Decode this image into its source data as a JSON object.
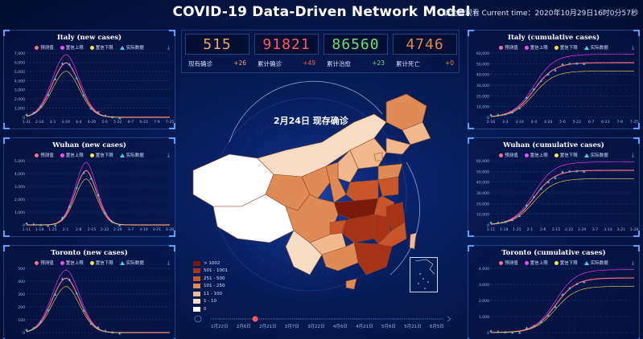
{
  "header": {
    "title": "COVID-19 Data-Driven Network Model",
    "clock": "请全屏观看 Current time：2020年10月29日16时0分57秒"
  },
  "legend_labels": {
    "predicted": "预测值",
    "upper": "置信上限",
    "lower": "置信下限",
    "actual": "实际数据"
  },
  "download_icon": "download-icon",
  "stats": [
    {
      "value": "515",
      "label": "现有确诊",
      "delta": "+26",
      "color": "#f0a860"
    },
    {
      "value": "91821",
      "label": "累计确诊",
      "delta": "+49",
      "color": "#ff5a5a"
    },
    {
      "value": "86560",
      "label": "累计治愈",
      "delta": "+23",
      "color": "#6fe06f"
    },
    {
      "value": "4746",
      "label": "累计死亡",
      "delta": "+0",
      "color": "#e08a4a"
    }
  ],
  "map": {
    "title": "2月24日  现存确诊",
    "legend": [
      {
        "label": "> 1002",
        "color": "#7a1a0a"
      },
      {
        "label": "501 - 1001",
        "color": "#a63315"
      },
      {
        "label": "251 - 500",
        "color": "#c9562a"
      },
      {
        "label": "101 - 250",
        "color": "#e08a55"
      },
      {
        "label": "11 - 100",
        "color": "#f0b88c"
      },
      {
        "label": "1 - 10",
        "color": "#f8dcc4"
      },
      {
        "label": "0",
        "color": "#ffffff"
      }
    ],
    "timeline": [
      "1月22日",
      "2月6日",
      "2月21日",
      "3月7日",
      "3月22日",
      "4月6日",
      "4月21日",
      "5月6日",
      "5月21日",
      "6月5日"
    ],
    "timeline_position": 0.19
  },
  "panels": [
    {
      "id": "italy-new",
      "title": "Italy   (new cases)",
      "yticks": [
        "0",
        "1,000",
        "2,000",
        "3,000",
        "4,000",
        "5,000",
        "6,000",
        "7,000"
      ],
      "xticks": [
        "1-31",
        "2-16",
        "3-3",
        "3-19",
        "4-4",
        "4-20",
        "5-6",
        "5-22",
        "6-7",
        "6-23",
        "7-9",
        "7-25"
      ]
    },
    {
      "id": "wuhan-new",
      "title": "Wuhan    (new cases)",
      "yticks": [
        "0",
        "1,000",
        "2,000",
        "3,000",
        "4,000",
        "5,000"
      ],
      "xticks": [
        "1-11",
        "1-18",
        "1-25",
        "2-1",
        "2-8",
        "2-15",
        "2-22",
        "2-29",
        "3-7",
        "3-14",
        "3-21",
        "3-28"
      ]
    },
    {
      "id": "toronto-new",
      "title": "Toronto   (new cases)",
      "yticks": [
        "0",
        "100",
        "200",
        "300",
        "400",
        "500"
      ],
      "xticks": []
    },
    {
      "id": "italy-cum",
      "title": "Italy   (cumulative cases)",
      "yticks": [
        "0",
        "10,000",
        "20,000",
        "30,000",
        "40,000",
        "50,000",
        "60,000"
      ],
      "xticks": [
        "2-16",
        "3-3",
        "3-19",
        "4-4",
        "4-20",
        "5-6",
        "5-22",
        "6-7",
        "6-23",
        "7-9",
        "7-25"
      ]
    },
    {
      "id": "wuhan-cum",
      "title": "Wuhan    (cumulative cases)",
      "yticks": [
        "0",
        "10,000",
        "20,000",
        "30,000",
        "40,000",
        "50,000",
        "60,000"
      ],
      "xticks": [
        "1-11",
        "1-18",
        "1-25",
        "2-1",
        "2-8",
        "2-15",
        "2-22",
        "2-29",
        "3-7",
        "3-14",
        "3-21",
        "3-28"
      ]
    },
    {
      "id": "toronto-cum",
      "title": "Toronto   (cumulative cases)",
      "yticks": [
        "0",
        "1,000",
        "2,000",
        "3,000",
        "4,000"
      ],
      "xticks": []
    }
  ]
}
